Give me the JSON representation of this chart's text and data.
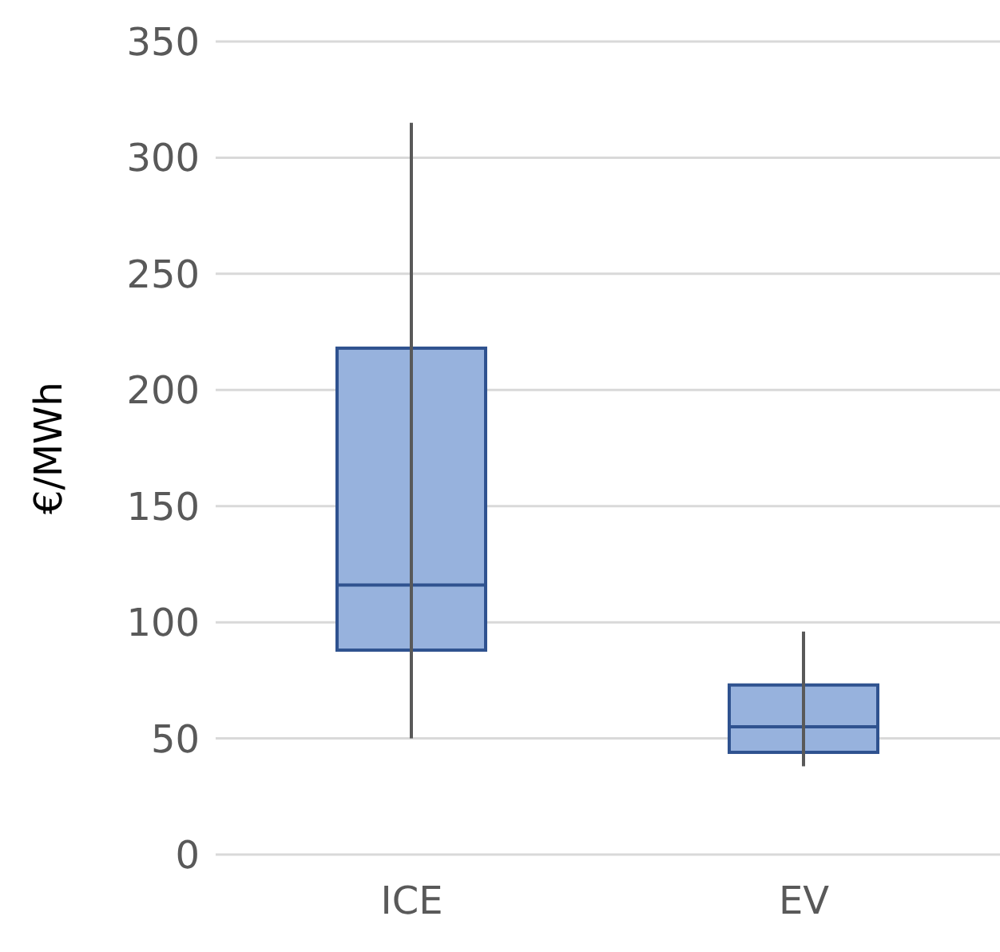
{
  "chart_data": {
    "type": "box",
    "ylabel": "€/MWh",
    "categories": [
      "ICE",
      "EV"
    ],
    "color": "#97b2dd",
    "boxes": [
      {
        "low": 50,
        "q1": 88,
        "median": 116,
        "q3": 218,
        "high": 315
      },
      {
        "low": 38,
        "q1": 44,
        "median": 55,
        "q3": 73,
        "high": 96
      }
    ],
    "ylim": [
      0,
      350
    ],
    "yticks": [
      0,
      50,
      100,
      150,
      200,
      250,
      300,
      350
    ],
    "grid": "y"
  }
}
